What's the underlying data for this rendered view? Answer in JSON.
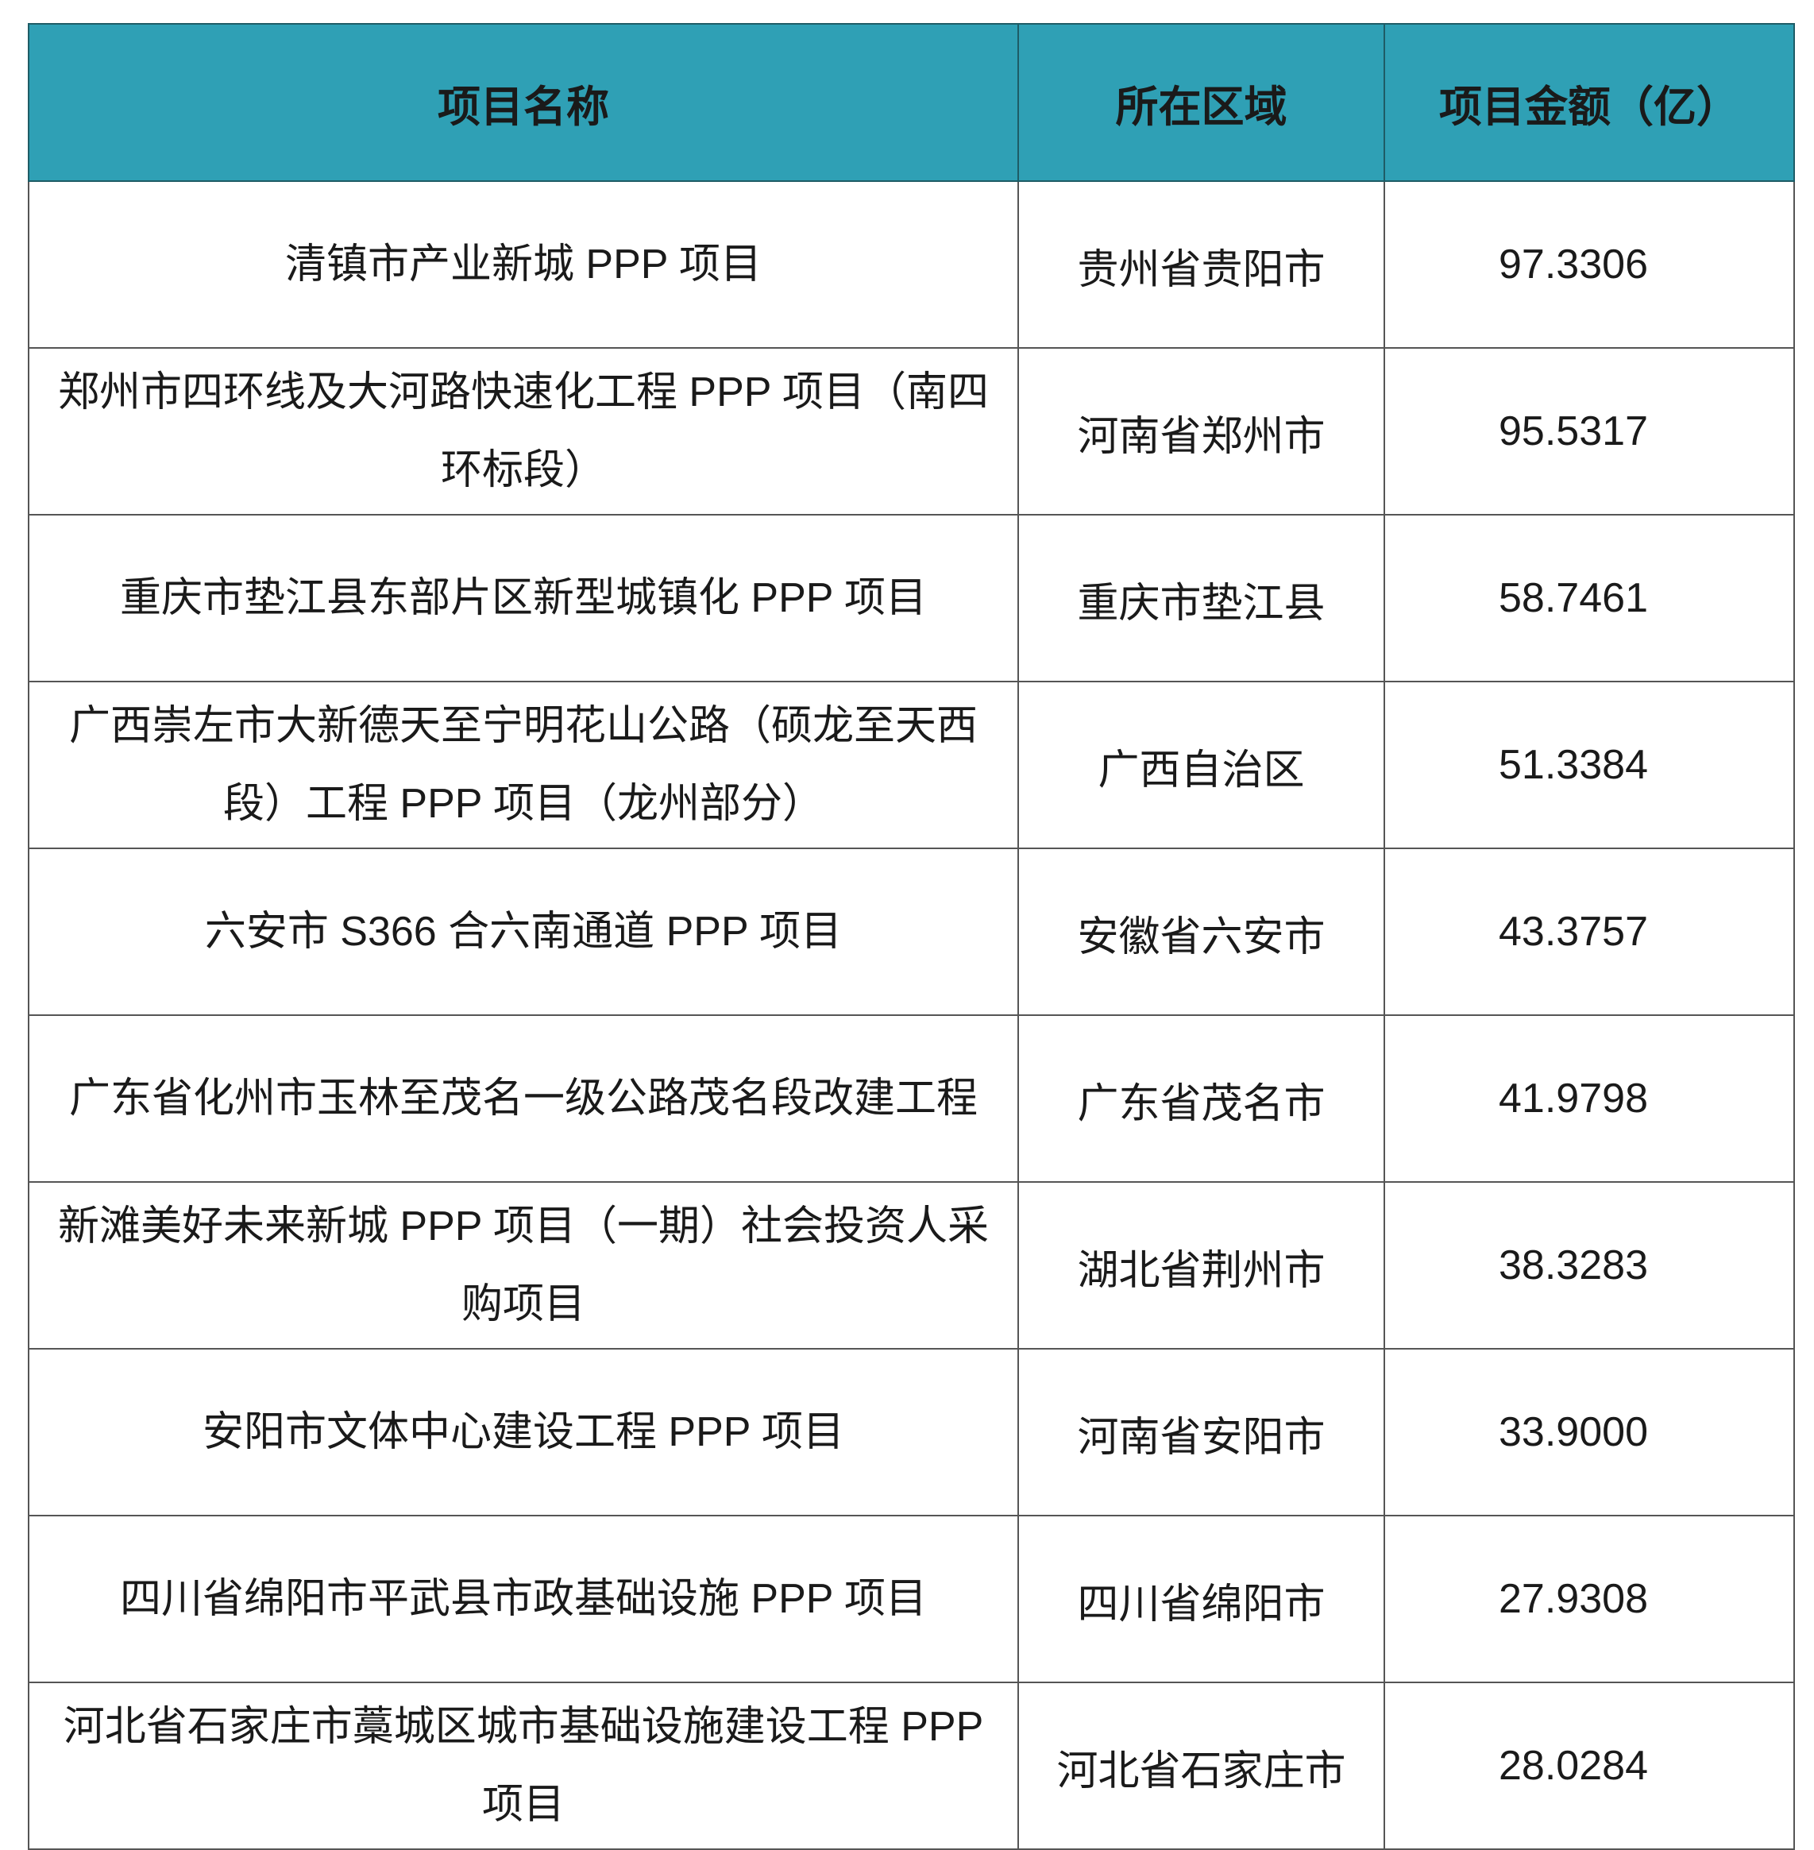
{
  "header": {
    "name": "项目名称",
    "region": "所在区域",
    "amount": "项目金额（亿）",
    "background_color": "#2fa0b5"
  },
  "rows": [
    {
      "name": "清镇市产业新城 PPP 项目",
      "region": "贵州省贵阳市",
      "amount": "97.3306"
    },
    {
      "name": "郑州市四环线及大河路快速化工程 PPP 项目（南四环标段）",
      "region": "河南省郑州市",
      "amount": "95.5317"
    },
    {
      "name": "重庆市垫江县东部片区新型城镇化 PPP 项目",
      "region": "重庆市垫江县",
      "amount": "58.7461"
    },
    {
      "name": "广西崇左市大新德天至宁明花山公路（硕龙至天西段）工程 PPP 项目（龙州部分）",
      "region": "广西自治区",
      "amount": "51.3384"
    },
    {
      "name": "六安市 S366 合六南通道 PPP 项目",
      "region": "安徽省六安市",
      "amount": "43.3757"
    },
    {
      "name": "广东省化州市玉林至茂名一级公路茂名段改建工程",
      "region": "广东省茂名市",
      "amount": "41.9798"
    },
    {
      "name": "新滩美好未来新城 PPP 项目（一期）社会投资人采购项目",
      "region": "湖北省荆州市",
      "amount": "38.3283"
    },
    {
      "name": "安阳市文体中心建设工程 PPP 项目",
      "region": "河南省安阳市",
      "amount": "33.9000"
    },
    {
      "name": "四川省绵阳市平武县市政基础设施 PPP 项目",
      "region": "四川省绵阳市",
      "amount": "27.9308"
    },
    {
      "name": "河北省石家庄市藁城区城市基础设施建设工程 PPP 项目",
      "region": "河北省石家庄市",
      "amount": "28.0284"
    }
  ]
}
